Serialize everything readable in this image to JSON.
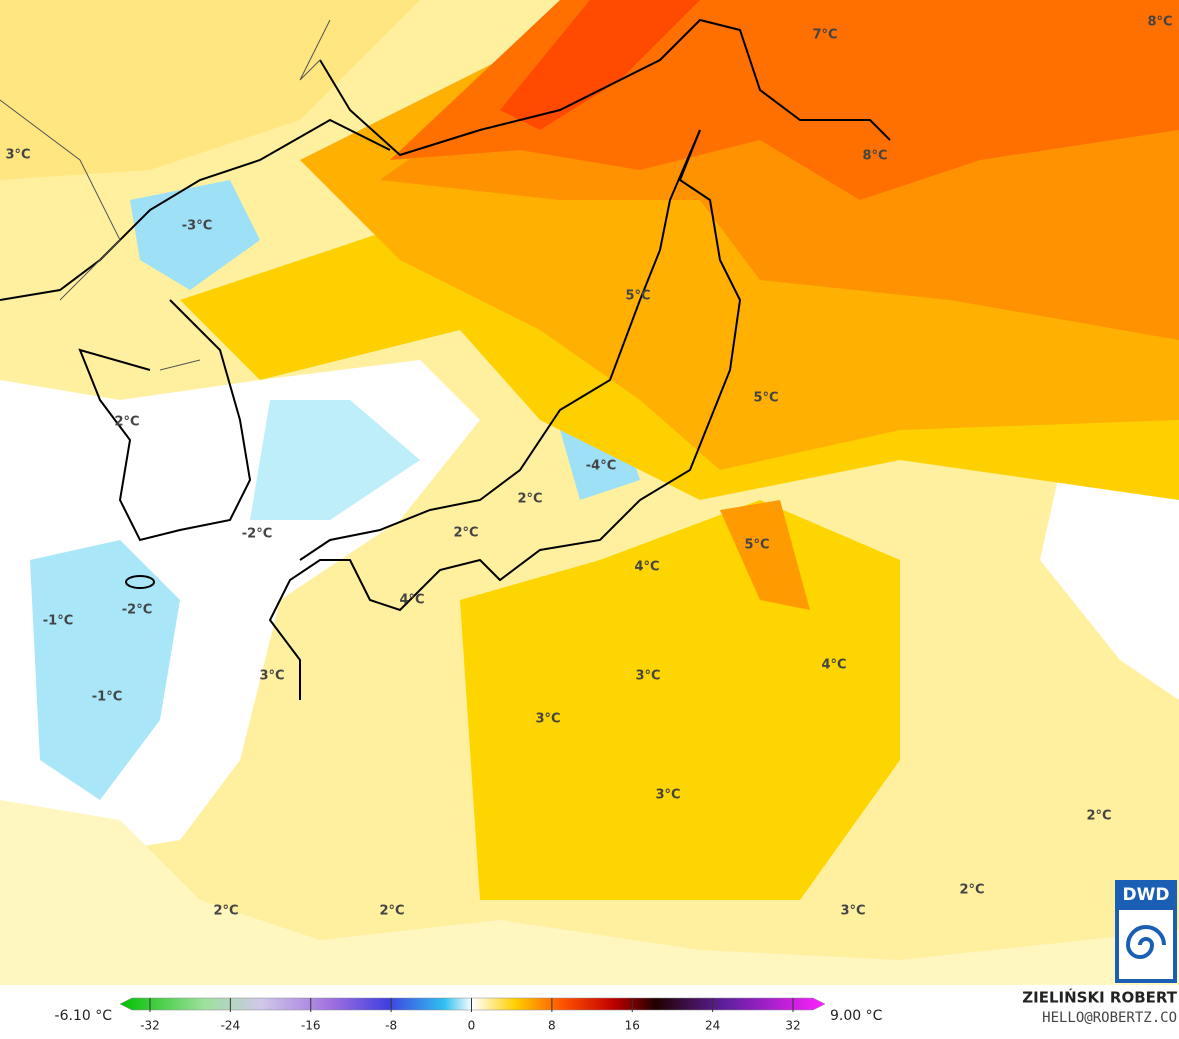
{
  "map": {
    "labels": [
      "7°C",
      "8°C",
      "3°C",
      "8°C",
      "-3°C",
      "5°C",
      "5°C",
      "2°C",
      "-4°C",
      "2°C",
      "2°C",
      "-2°C",
      "5°C",
      "4°C",
      "-2°C",
      "-1°C",
      "4°C",
      "4°C",
      "3°C",
      "3°C",
      "-1°C",
      "3°C",
      "3°C",
      "2°C",
      "2°C",
      "3°C",
      "2°C",
      "2°C"
    ],
    "logo": "DWD"
  },
  "colorbar": {
    "min_label": "-6.10 °C",
    "max_label": "9.00 °C",
    "ticks": [
      -32,
      -24,
      -16,
      -8,
      0,
      8,
      16,
      24,
      32
    ]
  },
  "credit": {
    "author": "ZIELIŃSKI ROBERT",
    "contact": "HELLO@ROBERTZ.CO"
  }
}
